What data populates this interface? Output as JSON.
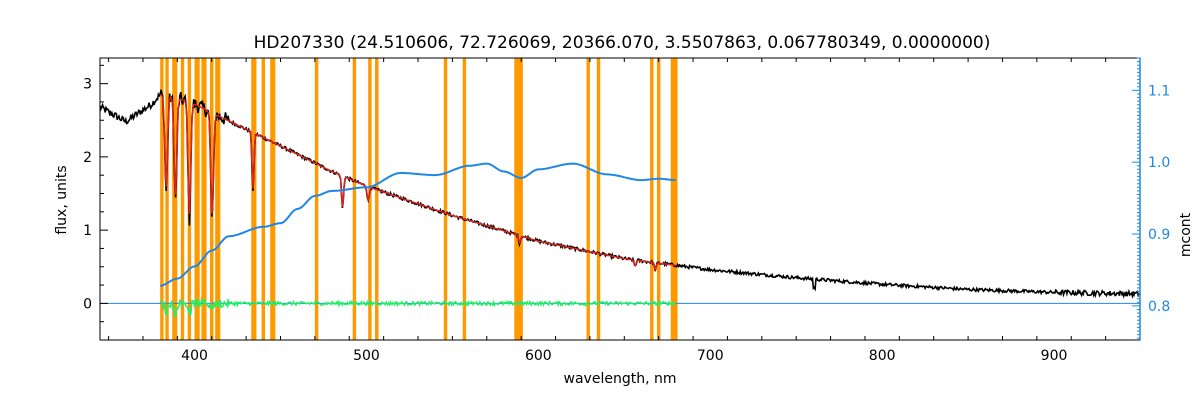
{
  "chart_data": {
    "type": "line",
    "title": "HD207330    (24.510606, 72.726069, 20366.070, 3.5507863, 0.067780349, 0.0000000)",
    "xlabel": "wavelength, nm",
    "ylabel": "flux, units",
    "y2label": "mcont",
    "xlim": [
      345,
      950
    ],
    "ylim": [
      -0.5,
      3.35
    ],
    "y2lim": [
      0.7525,
      1.145
    ],
    "x_ticks": [
      400,
      500,
      600,
      700,
      800,
      900
    ],
    "y_ticks": [
      0,
      1,
      2,
      3
    ],
    "y2_ticks": [
      0.8,
      0.9,
      1.0,
      1.1
    ],
    "x_tick_labels": [
      "400",
      "500",
      "600",
      "700",
      "800",
      "900"
    ],
    "y_tick_labels": [
      "0",
      "1",
      "2",
      "3"
    ],
    "y2_tick_labels": [
      "0.8",
      "0.9",
      "1.0",
      "1.1"
    ],
    "grid": false,
    "colors": {
      "observed": "#000000",
      "model": "#e8231b",
      "mcont": "#1f88e5",
      "residual": "#22ee66",
      "mask": "#ff9900",
      "y2axis": "#1f88e5",
      "zero_line": "#1f88e5"
    },
    "observed_continuum": {
      "name": "",
      "x": [
        345,
        360,
        375,
        380,
        390,
        400,
        420,
        450,
        480,
        500,
        550,
        600,
        650,
        700,
        750,
        800,
        850,
        900,
        950
      ],
      "y": [
        2.68,
        2.48,
        2.72,
        2.85,
        2.8,
        2.72,
        2.49,
        2.15,
        1.8,
        1.6,
        1.2,
        0.85,
        0.61,
        0.46,
        0.35,
        0.26,
        0.19,
        0.15,
        0.13
      ]
    },
    "absorption_lines": {
      "x": [
        383.5,
        388.9,
        397.0,
        410.2,
        434.0,
        486.1,
        501.0,
        589.0,
        656.3,
        668.0
      ],
      "depth": [
        1.3,
        1.4,
        1.6,
        1.5,
        0.8,
        0.45,
        0.2,
        0.1,
        0.08,
        0.1
      ]
    },
    "mcont": {
      "name": "",
      "x": [
        380,
        390,
        400,
        410,
        420,
        440,
        450,
        460,
        470,
        480,
        500,
        520,
        540,
        560,
        570,
        580,
        590,
        600,
        620,
        640,
        660,
        670,
        680
      ],
      "y": [
        0.828,
        0.838,
        0.855,
        0.877,
        0.897,
        0.91,
        0.915,
        0.935,
        0.953,
        0.96,
        0.965,
        0.985,
        0.982,
        0.995,
        0.998,
        0.987,
        0.978,
        0.99,
        0.998,
        0.983,
        0.975,
        0.977,
        0.975
      ]
    },
    "residual": {
      "name": "",
      "x": [
        380,
        400,
        420,
        450,
        500,
        550,
        600,
        650,
        680
      ],
      "y": [
        0,
        0,
        0,
        0,
        0,
        0,
        0,
        0,
        0
      ]
    },
    "mask_ranges": [
      [
        380,
        382
      ],
      [
        383,
        385
      ],
      [
        387,
        390
      ],
      [
        392,
        394
      ],
      [
        396,
        398
      ],
      [
        400,
        403
      ],
      [
        404,
        407
      ],
      [
        409,
        411
      ],
      [
        412,
        415
      ],
      [
        433,
        436
      ],
      [
        439,
        441
      ],
      [
        444,
        447
      ],
      [
        470,
        472
      ],
      [
        492,
        494
      ],
      [
        501,
        503
      ],
      [
        505,
        507
      ],
      [
        545,
        547
      ],
      [
        556,
        558
      ],
      [
        586,
        591
      ],
      [
        628,
        630
      ],
      [
        634,
        636
      ],
      [
        665,
        667
      ],
      [
        669,
        671
      ],
      [
        677,
        681
      ]
    ]
  }
}
